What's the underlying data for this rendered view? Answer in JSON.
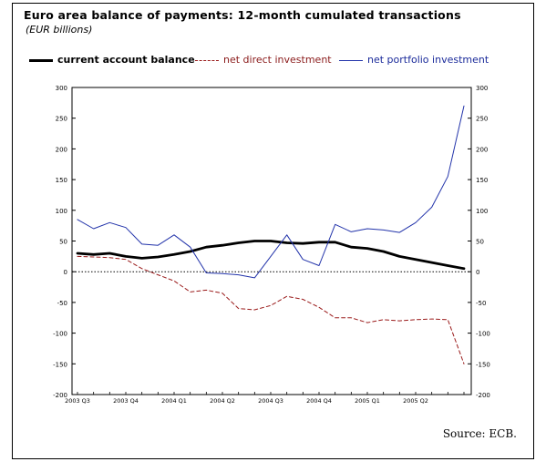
{
  "title": "Euro area balance of payments: 12-month cumulated transactions",
  "subtitle": "(EUR billions)",
  "source": "Source: ECB.",
  "colors": {
    "current": "#000000",
    "direct": "#9a1a1a",
    "portfolio": "#2233aa"
  },
  "chart_data": {
    "type": "line",
    "ylim": [
      -200,
      300
    ],
    "yticks": [
      "300",
      "250",
      "200",
      "150",
      "100",
      "50",
      "0",
      "-50",
      "-100",
      "-150",
      "-200"
    ],
    "ytick_values": [
      300,
      250,
      200,
      150,
      100,
      50,
      0,
      -50,
      -100,
      -150,
      -200
    ],
    "x_tick_labels": [
      "2003 Q3",
      "2003 Q4",
      "2004 Q1",
      "2004 Q2",
      "2004 Q3",
      "2004 Q4",
      "2005 Q1",
      "2005 Q2"
    ],
    "x_tick_index": [
      0,
      3,
      6,
      9,
      12,
      15,
      18,
      21
    ],
    "n_points": 25,
    "zero_line": "dotted",
    "series": [
      {
        "key": "current",
        "name": "current account balance",
        "style": "bold-solid",
        "values": [
          30,
          28,
          30,
          25,
          22,
          24,
          28,
          33,
          40,
          43,
          47,
          50,
          50,
          47,
          46,
          48,
          48,
          40,
          38,
          33,
          25,
          20,
          15,
          10,
          5
        ]
      },
      {
        "key": "direct",
        "name": "net direct investment",
        "style": "dashed",
        "values": [
          25,
          24,
          23,
          20,
          5,
          -5,
          -15,
          -33,
          -30,
          -35,
          -60,
          -62,
          -55,
          -40,
          -45,
          -58,
          -75,
          -75,
          -83,
          -78,
          -80,
          -78,
          -77,
          -78,
          -150
        ]
      },
      {
        "key": "portfolio",
        "name": "net portfolio investment",
        "style": "thin-solid",
        "values": [
          85,
          70,
          80,
          72,
          45,
          43,
          60,
          40,
          -2,
          -3,
          -5,
          -10,
          25,
          60,
          20,
          10,
          77,
          65,
          70,
          68,
          64,
          80,
          105,
          155,
          270
        ]
      }
    ]
  }
}
